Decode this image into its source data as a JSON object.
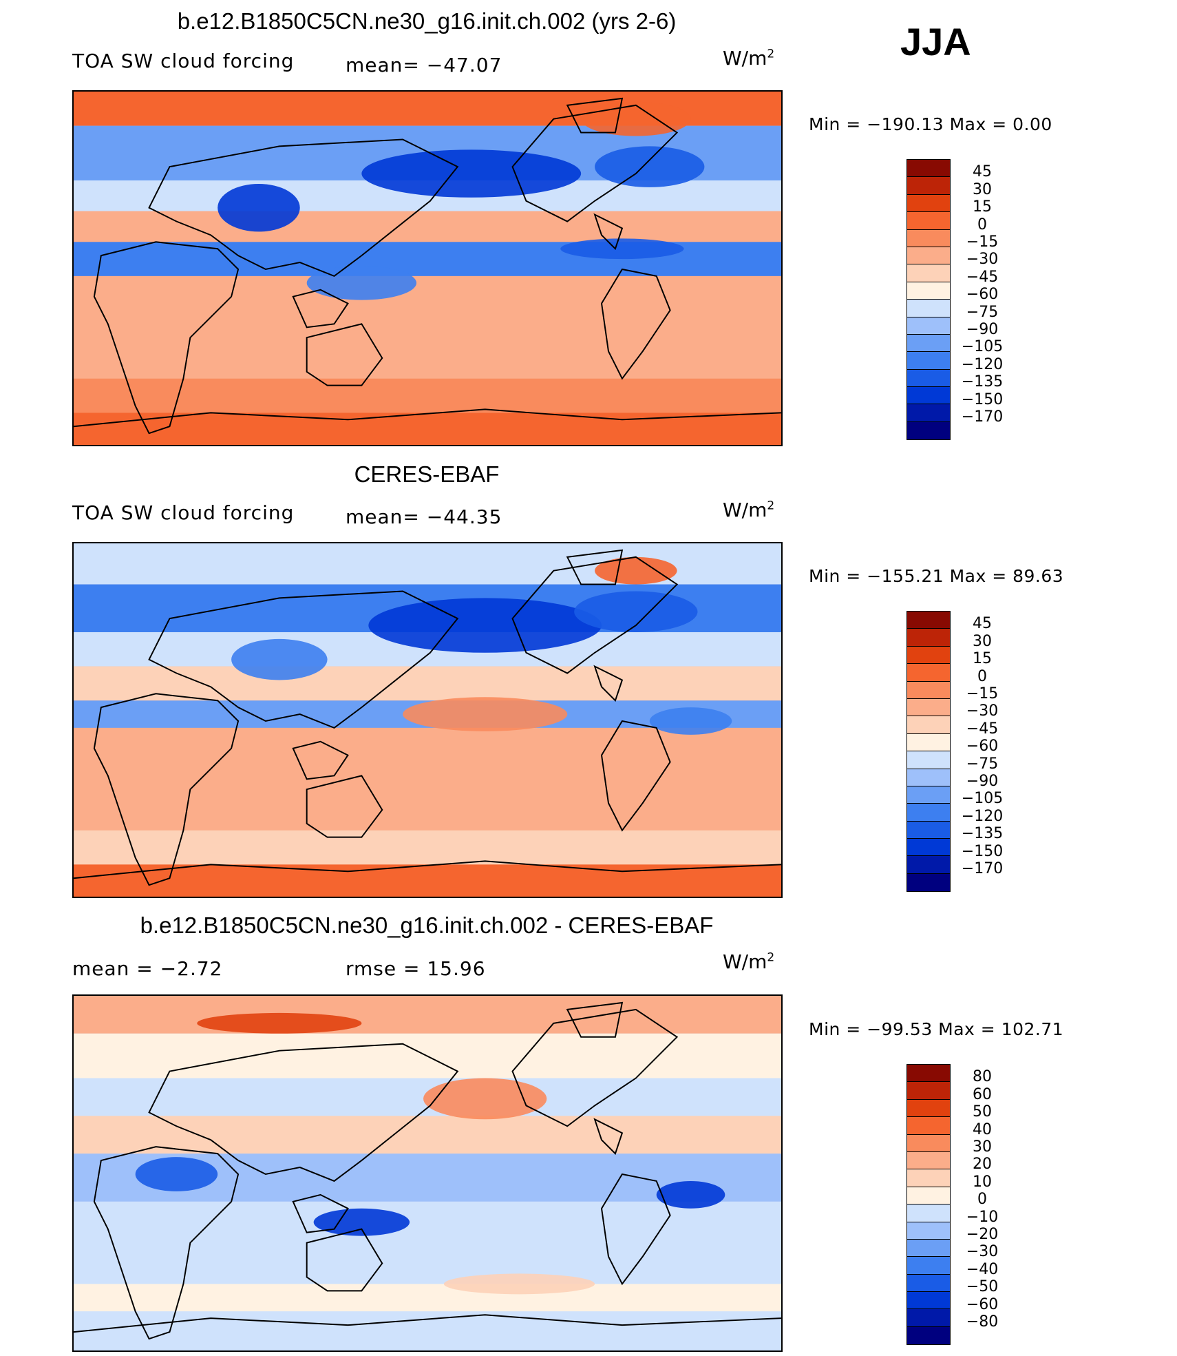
{
  "season": "JJA",
  "colors": {
    "full": [
      "#00007f",
      "#0019a9",
      "#0039d6",
      "#1a5ce6",
      "#3d7ff0",
      "#6b9ff5",
      "#9ec0fa",
      "#cfe2fc",
      "#fff2e2",
      "#fdd2b8",
      "#fbad8a",
      "#f98b5d",
      "#f5652f",
      "#e1420f",
      "#bd2407",
      "#880a02"
    ],
    "diff": [
      "#00007f",
      "#0019a9",
      "#0039d6",
      "#1a5ce6",
      "#3d7ff0",
      "#6b9ff5",
      "#9ec0fa",
      "#cfe2fc",
      "#fff2e2",
      "#fdd2b8",
      "#fbad8a",
      "#f98b5d",
      "#f5652f",
      "#e1420f",
      "#bd2407",
      "#880a02"
    ]
  },
  "panels": [
    {
      "title": "b.e12.B1850C5CN.ne30_g16.init.ch.002 (yrs 2-6)",
      "left_label": "TOA SW cloud forcing",
      "stat_label": "mean=  −47.07",
      "units": "W/m",
      "units_sup": "2",
      "minmax": "Min  =  −190.13  Max  =      0.00",
      "levels": [
        "45",
        "30",
        "15",
        "0",
        "−15",
        "−30",
        "−45",
        "−60",
        "−75",
        "−90",
        "−105",
        "−120",
        "−135",
        "−150",
        "−170"
      ]
    },
    {
      "title": "CERES-EBAF",
      "left_label": "TOA SW cloud forcing",
      "stat_label": "mean=  −44.35",
      "units": "W/m",
      "units_sup": "2",
      "minmax": "Min  =  −155.21  Max  =    89.63",
      "levels": [
        "45",
        "30",
        "15",
        "0",
        "−15",
        "−30",
        "−45",
        "−60",
        "−75",
        "−90",
        "−105",
        "−120",
        "−135",
        "−150",
        "−170"
      ]
    },
    {
      "title": "b.e12.B1850C5CN.ne30_g16.init.ch.002 - CERES-EBAF",
      "left_label": "mean  =    −2.72",
      "stat_label": "rmse  =    15.96",
      "units": "W/m",
      "units_sup": "2",
      "minmax": "Min  =  −99.53  Max  =  102.71",
      "levels": [
        "80",
        "60",
        "50",
        "40",
        "30",
        "20",
        "10",
        "0",
        "−10",
        "−20",
        "−30",
        "−40",
        "−50",
        "−60",
        "−80"
      ]
    }
  ]
}
